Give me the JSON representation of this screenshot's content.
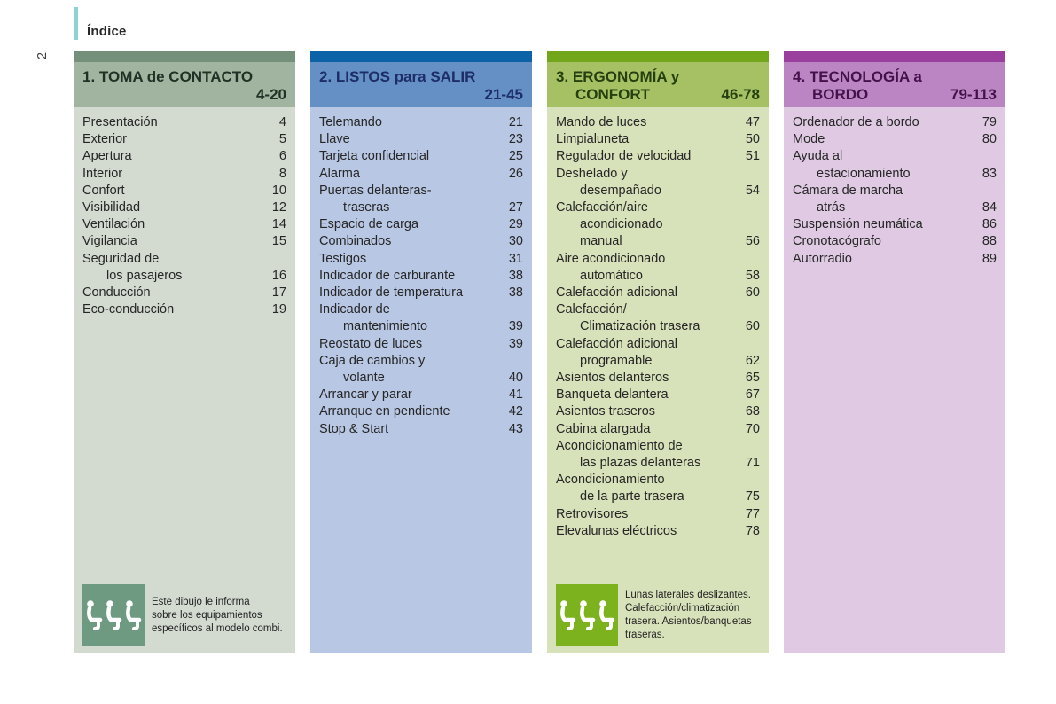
{
  "page": {
    "index_label": "Índice",
    "page_number": "2",
    "accent_color": "#8ed3d3",
    "text_color": "#262626"
  },
  "sections": [
    {
      "id": "toma-de-contacto",
      "title_line1": "1. TOMA de CONTACTO",
      "title_line2": "",
      "page_range": "4-20",
      "colors": {
        "strip": "#75907a",
        "header": "#a1b49f",
        "body": "#d3dbd1",
        "title_text": "#203226",
        "icon_box": "#6e9a81"
      },
      "items": [
        {
          "lines": [
            "Presentación"
          ],
          "page": "4"
        },
        {
          "lines": [
            "Exterior"
          ],
          "page": "5"
        },
        {
          "lines": [
            "Apertura"
          ],
          "page": "6"
        },
        {
          "lines": [
            "Interior"
          ],
          "page": "8"
        },
        {
          "lines": [
            "Confort"
          ],
          "page": "10"
        },
        {
          "lines": [
            "Visibilidad"
          ],
          "page": "12"
        },
        {
          "lines": [
            "Ventilación"
          ],
          "page": "14"
        },
        {
          "lines": [
            "Vigilancia"
          ],
          "page": "15"
        },
        {
          "lines": [
            "Seguridad de",
            "los pasajeros"
          ],
          "page": "16"
        },
        {
          "lines": [
            "Conducción"
          ],
          "page": "17"
        },
        {
          "lines": [
            "Eco-conducción"
          ],
          "page": "19"
        }
      ],
      "footer": {
        "icon": "three-seats-icon",
        "text_lines": [
          "Este dibujo le informa",
          "sobre los equipamientos",
          "específicos al modelo combi."
        ]
      }
    },
    {
      "id": "listos-para-salir",
      "title_line1": "2. LISTOS para SALIR",
      "title_line2": "",
      "page_range": "21-45",
      "colors": {
        "strip": "#0d63a7",
        "header": "#6590c5",
        "body": "#b8c7e4",
        "title_text": "#1c2d68"
      },
      "items": [
        {
          "lines": [
            "Telemando"
          ],
          "page": "21"
        },
        {
          "lines": [
            "Llave"
          ],
          "page": "23"
        },
        {
          "lines": [
            "Tarjeta confidencial"
          ],
          "page": "25"
        },
        {
          "lines": [
            "Alarma"
          ],
          "page": "26"
        },
        {
          "lines": [
            "Puertas delanteras-",
            "traseras"
          ],
          "page": "27"
        },
        {
          "lines": [
            "Espacio de carga"
          ],
          "page": "29"
        },
        {
          "lines": [
            "Combinados"
          ],
          "page": "30"
        },
        {
          "lines": [
            "Testigos"
          ],
          "page": "31"
        },
        {
          "lines": [
            "Indicador de carburante"
          ],
          "page": "38"
        },
        {
          "lines": [
            "Indicador de temperatura"
          ],
          "page": "38"
        },
        {
          "lines": [
            "Indicador de",
            "mantenimiento"
          ],
          "page": "39"
        },
        {
          "lines": [
            "Reostato de luces"
          ],
          "page": "39"
        },
        {
          "lines": [
            "Caja de cambios y",
            "volante"
          ],
          "page": "40"
        },
        {
          "lines": [
            "Arrancar y parar"
          ],
          "page": "41"
        },
        {
          "lines": [
            "Arranque en pendiente"
          ],
          "page": "42"
        },
        {
          "lines": [
            "Stop & Start"
          ],
          "page": "43"
        }
      ]
    },
    {
      "id": "ergonomia-y-confort",
      "title_line1": "3. ERGONOMÍA y",
      "title_line2": "CONFORT",
      "page_range": "46-78",
      "colors": {
        "strip": "#73a71b",
        "header": "#a5c164",
        "body": "#d8e2ba",
        "title_text": "#253f0e",
        "icon_box": "#7cb21d"
      },
      "items": [
        {
          "lines": [
            "Mando de luces"
          ],
          "page": "47"
        },
        {
          "lines": [
            "Limpialuneta"
          ],
          "page": "50"
        },
        {
          "lines": [
            "Regulador de velocidad"
          ],
          "page": "51"
        },
        {
          "lines": [
            "Deshelado y",
            "desempañado"
          ],
          "page": "54"
        },
        {
          "lines": [
            "Calefacción/aire",
            "acondicionado",
            "manual"
          ],
          "page": "56"
        },
        {
          "lines": [
            "Aire acondicionado",
            "automático"
          ],
          "page": "58"
        },
        {
          "lines": [
            "Calefacción adicional"
          ],
          "page": "60"
        },
        {
          "lines": [
            "Calefacción/",
            "Climatización trasera"
          ],
          "page": "60"
        },
        {
          "lines": [
            "Calefacción adicional",
            "programable"
          ],
          "page": "62"
        },
        {
          "lines": [
            "Asientos delanteros"
          ],
          "page": "65"
        },
        {
          "lines": [
            "Banqueta delantera"
          ],
          "page": "67"
        },
        {
          "lines": [
            "Asientos traseros"
          ],
          "page": "68"
        },
        {
          "lines": [
            "Cabina alargada"
          ],
          "page": "70"
        },
        {
          "lines": [
            "Acondicionamiento de",
            "las plazas delanteras"
          ],
          "page": "71"
        },
        {
          "lines": [
            "Acondicionamiento",
            "de la parte trasera"
          ],
          "page": "75"
        },
        {
          "lines": [
            "Retrovisores"
          ],
          "page": "77"
        },
        {
          "lines": [
            "Elevalunas eléctricos"
          ],
          "page": "78"
        }
      ],
      "footer": {
        "icon": "three-seats-icon",
        "text_lines": [
          "Lunas laterales deslizantes.",
          "Calefacción/climatización",
          "trasera. Asientos/banquetas",
          "traseras."
        ]
      }
    },
    {
      "id": "tecnologia-a-bordo",
      "title_line1": "4. TECNOLOGÍA a",
      "title_line2": "BORDO",
      "page_range": "79-113",
      "colors": {
        "strip": "#9a3f9d",
        "header": "#bb84c3",
        "body": "#dfc9e3",
        "title_text": "#44124a"
      },
      "items": [
        {
          "lines": [
            "Ordenador de a bordo"
          ],
          "page": "79"
        },
        {
          "lines": [
            "Mode"
          ],
          "page": "80"
        },
        {
          "lines": [
            "Ayuda al",
            "estacionamiento"
          ],
          "page": "83"
        },
        {
          "lines": [
            "Cámara de marcha",
            "atrás"
          ],
          "page": "84"
        },
        {
          "lines": [
            "Suspensión neumática"
          ],
          "page": "86"
        },
        {
          "lines": [
            "Cronotacógrafo"
          ],
          "page": "88"
        },
        {
          "lines": [
            "Autorradio"
          ],
          "page": "89"
        }
      ]
    }
  ]
}
